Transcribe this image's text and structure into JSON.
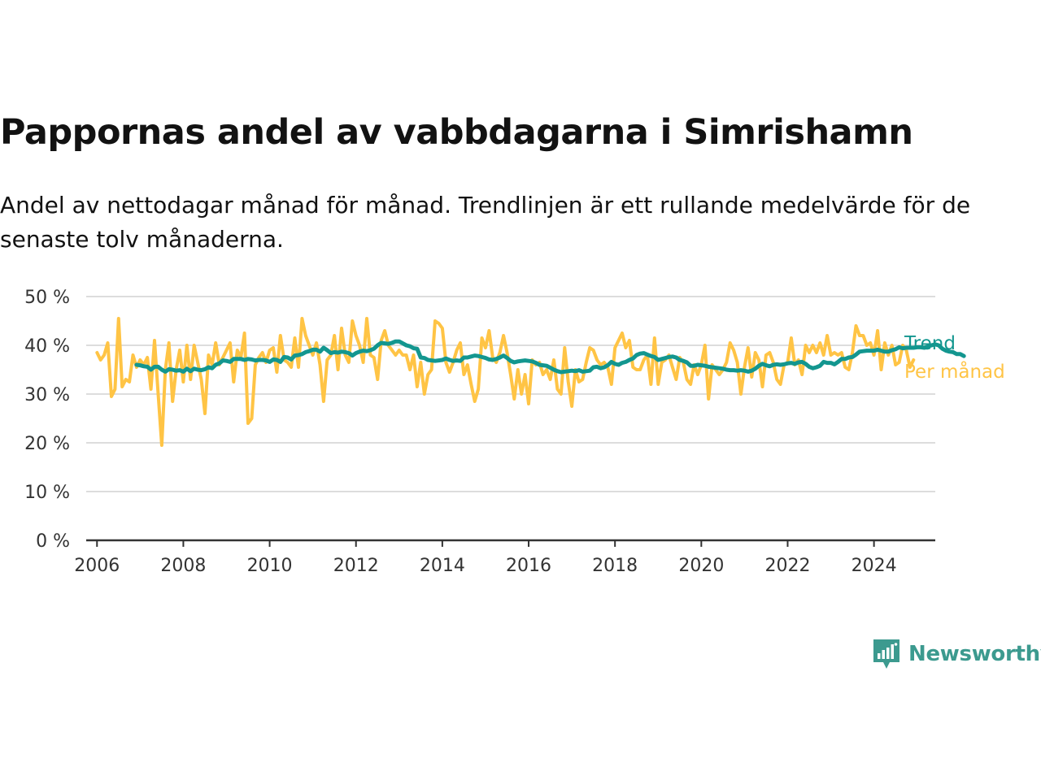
{
  "colors": {
    "trend": "#13968f",
    "monthly": "#ffc445",
    "brand": "#3c9a8f",
    "grid": "#dddddd",
    "axis": "#333333"
  },
  "header": {
    "title": "Pappornas andel av vabbdagarna i Simrishamn",
    "subtitle": "Andel av nettodagar månad för månad. Trendlinjen är ett rullande medelvärde för de senaste tolv månaderna."
  },
  "brand": {
    "name": "Newsworthy",
    "icon": "newsworthy-logo-icon"
  },
  "chart_data": {
    "type": "line",
    "title": "Pappornas andel av vabbdagarna i Simrishamn",
    "subtitle": "Andel av nettodagar månad för månad. Trendlinjen är ett rullande medelvärde för de senaste tolv månaderna.",
    "x_ticks": [
      "2006",
      "2008",
      "2010",
      "2012",
      "2014",
      "2016",
      "2018",
      "2020",
      "2022",
      "2024"
    ],
    "y_ticks": [
      "0 %",
      "10 %",
      "20 %",
      "30 %",
      "40 %",
      "50 %"
    ],
    "xlim": [
      2005.75,
      2025.42
    ],
    "ylim": [
      0,
      50
    ],
    "grid": true,
    "legend_position": "right end of lines",
    "series": [
      {
        "name": "Per månad",
        "start": [
          2006,
          1
        ],
        "values": [
          38.5,
          37.0,
          38.0,
          40.5,
          29.5,
          31.0,
          45.5,
          31.5,
          33.0,
          32.5,
          38.0,
          35.5,
          37.0,
          36.0,
          37.5,
          31.0,
          41.0,
          30.0,
          19.5,
          35.0,
          40.5,
          28.5,
          35.0,
          39.0,
          32.5,
          40.0,
          33.0,
          40.0,
          36.5,
          33.0,
          26.0,
          38.0,
          36.0,
          40.5,
          36.0,
          37.5,
          39.0,
          40.5,
          32.5,
          39.0,
          37.5,
          42.5,
          24.0,
          25.0,
          36.0,
          37.5,
          38.5,
          36.5,
          39.0,
          39.5,
          34.5,
          42.0,
          37.0,
          36.5,
          35.5,
          41.5,
          35.5,
          45.5,
          42.0,
          40.0,
          38.0,
          40.5,
          36.0,
          28.5,
          37.0,
          38.0,
          42.0,
          35.0,
          43.5,
          38.0,
          36.5,
          45.0,
          42.0,
          40.0,
          36.5,
          45.5,
          38.0,
          37.5,
          33.0,
          41.0,
          43.0,
          40.0,
          39.0,
          38.0,
          39.0,
          38.0,
          38.0,
          35.0,
          38.0,
          31.5,
          36.5,
          30.0,
          34.0,
          35.0,
          45.0,
          44.5,
          43.5,
          36.5,
          34.5,
          36.5,
          39.0,
          40.5,
          34.0,
          36.0,
          32.0,
          28.5,
          31.0,
          41.5,
          39.5,
          43.0,
          37.5,
          36.5,
          38.5,
          42.0,
          38.5,
          34.0,
          29.0,
          35.0,
          30.0,
          34.0,
          28.0,
          37.0,
          36.0,
          36.5,
          34.0,
          35.0,
          33.0,
          37.0,
          31.0,
          30.0,
          39.5,
          32.5,
          27.5,
          35.0,
          32.5,
          33.0,
          36.5,
          39.5,
          39.0,
          37.0,
          36.0,
          36.5,
          35.5,
          32.0,
          39.5,
          41.0,
          42.5,
          39.5,
          41.0,
          35.5,
          35.0,
          35.0,
          37.0,
          38.0,
          32.0,
          41.5,
          32.0,
          36.5,
          37.0,
          38.0,
          35.5,
          33.0,
          37.5,
          36.5,
          33.0,
          32.0,
          36.0,
          34.0,
          36.0,
          40.0,
          29.0,
          36.0,
          35.0,
          34.0,
          35.0,
          36.5,
          40.5,
          39.0,
          36.5,
          30.0,
          35.5,
          39.5,
          33.5,
          38.5,
          37.0,
          31.5,
          38.0,
          38.5,
          36.5,
          33.0,
          32.0,
          36.0,
          36.5,
          41.5,
          36.0,
          37.0,
          34.0,
          40.0,
          38.5,
          40.0,
          38.5,
          40.5,
          38.0,
          42.0,
          38.0,
          38.5,
          38.0,
          38.5,
          35.5,
          35.0,
          38.5,
          44.0,
          42.0,
          42.0,
          40.0,
          40.5,
          38.0,
          43.0,
          35.0,
          40.5,
          38.0,
          40.0,
          36.0,
          36.5,
          40.0,
          39.0,
          35.5,
          37.0
        ]
      },
      {
        "name": "Trend",
        "start": [
          2006,
          12
        ],
        "values": [
          36.0,
          35.9,
          35.7,
          35.6,
          35.0,
          35.6,
          35.6,
          35.0,
          34.6,
          35.1,
          35.0,
          34.8,
          34.9,
          34.6,
          35.2,
          34.7,
          35.2,
          35.0,
          34.9,
          35.1,
          35.5,
          35.3,
          36.0,
          36.3,
          36.9,
          36.8,
          36.6,
          37.2,
          37.2,
          37.2,
          37.0,
          37.2,
          37.1,
          36.9,
          37.0,
          37.0,
          36.9,
          36.6,
          37.1,
          37.0,
          36.6,
          37.6,
          37.5,
          37.1,
          37.9,
          38.0,
          38.2,
          38.6,
          38.8,
          39.1,
          39.1,
          38.7,
          39.5,
          39.0,
          38.4,
          38.6,
          38.5,
          38.7,
          38.6,
          38.4,
          37.9,
          38.4,
          38.7,
          38.9,
          38.8,
          39.0,
          39.3,
          40.0,
          40.5,
          40.4,
          40.3,
          40.5,
          40.8,
          40.8,
          40.4,
          40.0,
          39.8,
          39.4,
          39.3,
          37.5,
          37.4,
          37.0,
          36.9,
          36.8,
          36.9,
          37.0,
          37.3,
          37.0,
          36.8,
          36.9,
          36.8,
          37.5,
          37.5,
          37.7,
          37.9,
          37.8,
          37.6,
          37.4,
          37.1,
          37.0,
          37.2,
          37.5,
          37.9,
          37.4,
          36.8,
          36.5,
          36.7,
          36.8,
          36.9,
          36.8,
          36.7,
          36.4,
          36.0,
          35.9,
          35.8,
          35.4,
          35.0,
          34.7,
          34.5,
          34.6,
          34.7,
          34.8,
          34.7,
          34.9,
          34.6,
          34.7,
          34.8,
          35.5,
          35.6,
          35.3,
          35.5,
          35.9,
          36.6,
          36.2,
          36.0,
          36.4,
          36.6,
          37.0,
          37.3,
          38.0,
          38.3,
          38.4,
          38.1,
          37.8,
          37.6,
          37.0,
          37.2,
          37.4,
          37.6,
          37.7,
          37.5,
          37.0,
          36.8,
          36.5,
          35.8,
          35.8,
          36.0,
          35.9,
          35.8,
          35.6,
          35.5,
          35.4,
          35.3,
          35.2,
          35.0,
          34.9,
          34.9,
          34.8,
          34.9,
          34.8,
          34.6,
          34.8,
          35.2,
          35.8,
          36.2,
          35.9,
          35.7,
          36.0,
          36.1,
          36.0,
          36.1,
          36.3,
          36.4,
          36.2,
          36.5,
          36.6,
          36.2,
          35.6,
          35.3,
          35.5,
          35.8,
          36.6,
          36.4,
          36.4,
          36.1,
          36.6,
          37.2,
          37.2,
          37.5,
          37.6,
          38.1,
          38.7,
          38.8,
          38.9,
          38.9,
          38.9,
          39.1,
          38.9,
          38.7,
          38.7,
          39.0,
          39.2,
          39.6,
          39.4,
          39.5,
          39.5,
          39.5,
          39.6,
          39.6,
          39.5,
          39.8,
          40.0,
          40.2,
          40.0,
          39.3,
          38.9,
          38.7,
          38.6,
          38.2,
          38.2,
          37.8
        ]
      }
    ]
  }
}
